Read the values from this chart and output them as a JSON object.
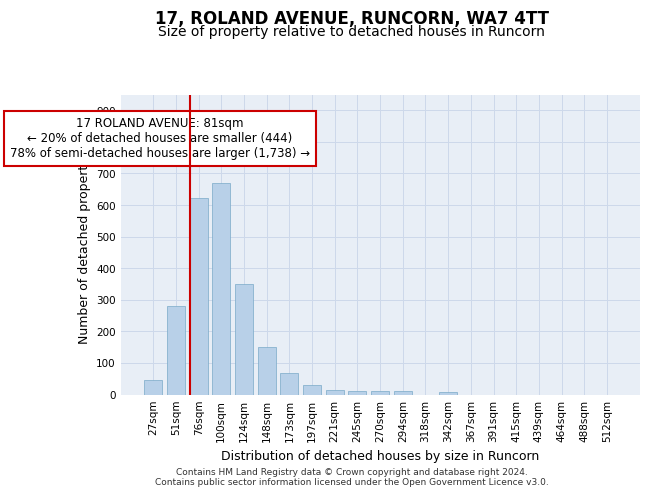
{
  "title1": "17, ROLAND AVENUE, RUNCORN, WA7 4TT",
  "title2": "Size of property relative to detached houses in Runcorn",
  "xlabel": "Distribution of detached houses by size in Runcorn",
  "ylabel": "Number of detached properties",
  "bar_labels": [
    "27sqm",
    "51sqm",
    "76sqm",
    "100sqm",
    "124sqm",
    "148sqm",
    "173sqm",
    "197sqm",
    "221sqm",
    "245sqm",
    "270sqm",
    "294sqm",
    "318sqm",
    "342sqm",
    "367sqm",
    "391sqm",
    "415sqm",
    "439sqm",
    "464sqm",
    "488sqm",
    "512sqm"
  ],
  "bar_values": [
    45,
    280,
    622,
    670,
    350,
    150,
    68,
    30,
    15,
    12,
    12,
    10,
    0,
    8,
    0,
    0,
    0,
    0,
    0,
    0,
    0
  ],
  "bar_color": "#b8d0e8",
  "bar_edge_color": "#7aaac8",
  "vline_color": "#cc0000",
  "vline_x_index": 2,
  "annotation_text": "17 ROLAND AVENUE: 81sqm\n← 20% of detached houses are smaller (444)\n78% of semi-detached houses are larger (1,738) →",
  "annotation_box_color": "#ffffff",
  "annotation_box_edge": "#cc0000",
  "ylim": [
    0,
    950
  ],
  "yticks": [
    0,
    100,
    200,
    300,
    400,
    500,
    600,
    700,
    800,
    900
  ],
  "grid_color": "#cdd8ea",
  "bg_color": "#e8eef6",
  "footer_text": "Contains HM Land Registry data © Crown copyright and database right 2024.\nContains public sector information licensed under the Open Government Licence v3.0.",
  "title1_fontsize": 12,
  "title2_fontsize": 10,
  "xlabel_fontsize": 9,
  "ylabel_fontsize": 9,
  "tick_fontsize": 7.5,
  "annotation_fontsize": 8.5,
  "footer_fontsize": 6.5
}
